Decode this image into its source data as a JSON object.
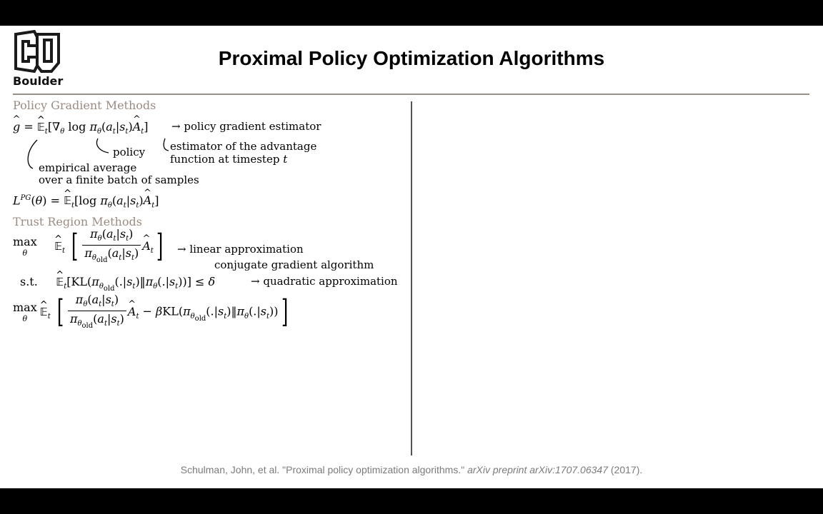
{
  "slide": {
    "logo_text": "Boulder",
    "title": "Proximal Policy Optimization Algorithms",
    "sections": {
      "policy_gradient_heading": "Policy Gradient Methods",
      "trust_region_heading": "Trust Region Methods"
    },
    "annotations": {
      "pg_estimator": "→ policy gradient estimator",
      "policy": "policy",
      "advantage_line1": "estimator of the advantage",
      "advantage_line2": "function at timestep",
      "empirical_line1": "empirical average",
      "empirical_line2": "over a finite batch of samples",
      "linear_approx": "→ linear approximation",
      "conjugate": "conjugate gradient algorithm",
      "quadratic": "→ quadratic approximation",
      "st": "s.t."
    },
    "citation": {
      "authors": "Schulman, John, et al. \"Proximal policy optimization algorithms.\"",
      "venue": "arXiv preprint arXiv:1707.06347",
      "year": "(2017)."
    }
  }
}
